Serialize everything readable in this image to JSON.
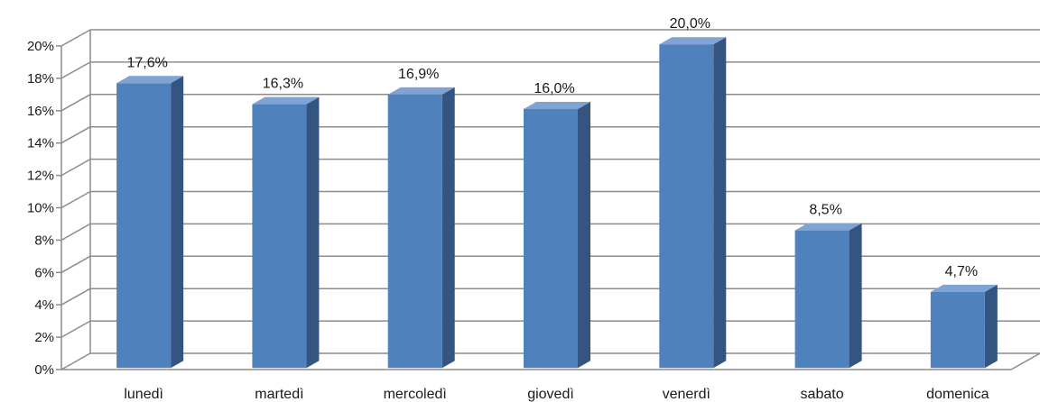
{
  "chart_data": {
    "type": "bar",
    "style": "3d-column",
    "title": "",
    "xlabel": "",
    "ylabel": "",
    "categories": [
      "lunedì",
      "martedì",
      "mercoledì",
      "giovedì",
      "venerdì",
      "sabato",
      "domenica"
    ],
    "values": [
      17.6,
      16.3,
      16.9,
      16.0,
      20.0,
      8.5,
      4.7
    ],
    "data_labels": [
      "17,6%",
      "16,3%",
      "16,9%",
      "16,0%",
      "20,0%",
      "8,5%",
      "4,7%"
    ],
    "ylim": [
      0,
      20
    ],
    "y_ticks": [
      0,
      2,
      4,
      6,
      8,
      10,
      12,
      14,
      16,
      18,
      20
    ],
    "y_tick_labels": [
      "0%",
      "2%",
      "4%",
      "6%",
      "8%",
      "10%",
      "12%",
      "14%",
      "16%",
      "18%",
      "20%"
    ],
    "grid": true,
    "legend": "none",
    "colors": {
      "bar_front": "#4f81bd",
      "bar_top": "#7ea3d4",
      "bar_side": "#34557f",
      "gridline": "#8c8c8c",
      "axis": "#8c8c8c"
    }
  }
}
